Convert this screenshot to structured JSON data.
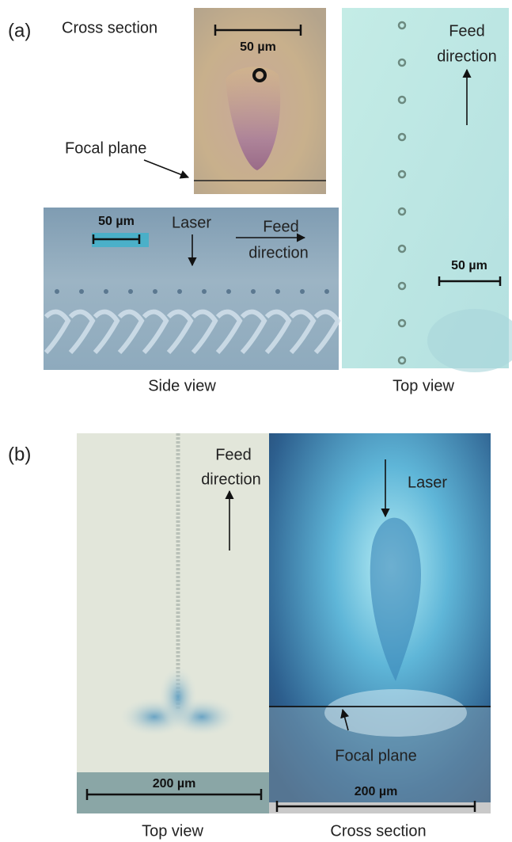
{
  "panel_a": {
    "label": "(a)",
    "cross_section": {
      "title": "Cross section",
      "scale": "50 µm",
      "focal": "Focal plane"
    },
    "side_view": {
      "scale": "50 µm",
      "laser": "Laser",
      "feed": [
        "Feed",
        "direction"
      ],
      "caption": "Side view"
    },
    "top_view": {
      "feed": [
        "Feed",
        "direction"
      ],
      "scale": "50 µm",
      "caption": "Top view"
    }
  },
  "panel_b": {
    "label": "(b)",
    "top_view": {
      "feed": [
        "Feed",
        "direction"
      ],
      "scale": "200 µm",
      "caption": "Top view"
    },
    "cross_section": {
      "laser": "Laser",
      "focal": "Focal plane",
      "scale": "200 µm",
      "caption": "Cross section"
    }
  }
}
